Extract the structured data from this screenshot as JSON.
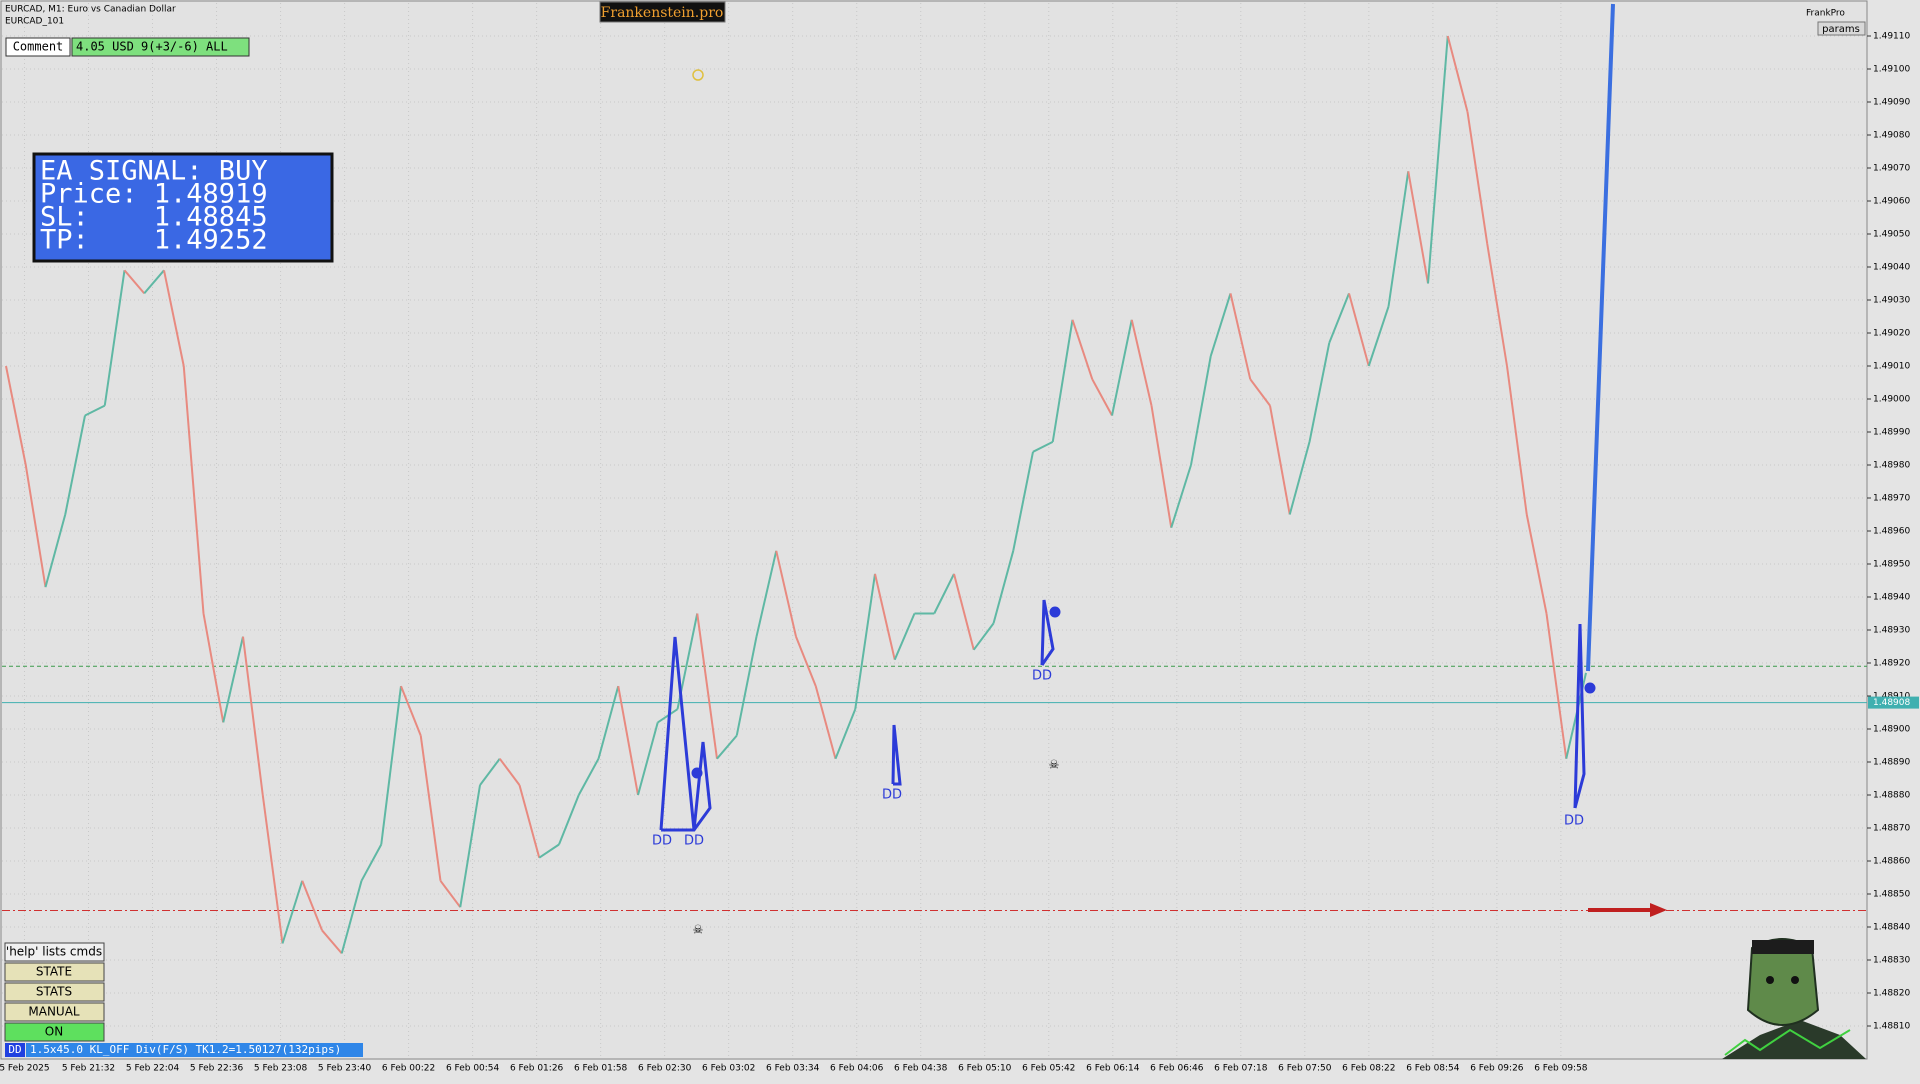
{
  "header": {
    "symbol": "EURCAD, M1:  Euro vs Canadian Dollar",
    "template": "EURCAD_101",
    "brand": "Frankenstein.pro",
    "account": "FrankPro",
    "params": "params"
  },
  "comment": {
    "label": "Comment",
    "text": "4.05 USD 9(+3/-6) ALL"
  },
  "signal_box": {
    "lines": [
      "EA SIGNAL: BUY",
      "Price: 1.48919",
      "SL:    1.48845",
      "TP:    1.49252"
    ]
  },
  "buttons": [
    "'help' lists cmds",
    "STATE",
    "STATS",
    "MANUAL",
    "ON"
  ],
  "status_bar": {
    "tag": "DD",
    "text": "1.5x45.0 KL_OFF Div(F/S) TK1.2=1.50127(132pips)"
  },
  "dd_labels": [
    "DD",
    "DD",
    "DD",
    "DD",
    "DD"
  ],
  "chart": {
    "type": "line",
    "categories": [
      "5 Feb 2025",
      "5 Feb 21:32",
      "5 Feb 22:04",
      "5 Feb 22:36",
      "5 Feb 23:08",
      "5 Feb 23:40",
      "6 Feb 00:22",
      "6 Feb 00:54",
      "6 Feb 01:26",
      "6 Feb 01:58",
      "6 Feb 02:30",
      "6 Feb 03:02",
      "6 Feb 03:34",
      "6 Feb 04:06",
      "6 Feb 04:38",
      "6 Feb 05:10",
      "6 Feb 05:42",
      "6 Feb 06:14",
      "6 Feb 06:46",
      "6 Feb 07:18",
      "6 Feb 07:50",
      "6 Feb 08:22",
      "6 Feb 08:54",
      "6 Feb 09:26",
      "6 Feb 09:58"
    ],
    "price": {
      "up_color": "#5fb8a4",
      "down_color": "#e88a80",
      "values": [
        1.4901,
        1.4898,
        1.48943,
        1.48965,
        1.48995,
        1.48998,
        1.49039,
        1.49032,
        1.49039,
        1.4901,
        1.48935,
        1.48902,
        1.48928,
        1.4888,
        1.48835,
        1.48854,
        1.48839,
        1.48832,
        1.48854,
        1.48865,
        1.48913,
        1.48898,
        1.48854,
        1.48846,
        1.48883,
        1.48891,
        1.48883,
        1.48861,
        1.48865,
        1.4888,
        1.48891,
        1.48913,
        1.4888,
        1.48902,
        1.48906,
        1.48935,
        1.48891,
        1.48898,
        1.48928,
        1.48954,
        1.48928,
        1.48913,
        1.48891,
        1.48906,
        1.48947,
        1.48921,
        1.48935,
        1.48935,
        1.48947,
        1.48924,
        1.48932,
        1.48954,
        1.48984,
        1.48987,
        1.49024,
        1.49006,
        1.48995,
        1.49024,
        1.48998,
        1.48961,
        1.4898,
        1.49013,
        1.49032,
        1.49006,
        1.48998,
        1.48965,
        1.48987,
        1.49017,
        1.49032,
        1.4901,
        1.49028,
        1.49069,
        1.49035,
        1.4911,
        1.49087,
        1.49047,
        1.4901,
        1.48965,
        1.48935,
        1.48891,
        1.48917
      ]
    },
    "levels": {
      "entry": 1.48919,
      "entry_color": "#3a9a4a",
      "sl": 1.48845,
      "sl_color": "#d03030",
      "current": 1.48908,
      "current_color": "#40b0b0"
    },
    "ylim": [
      1.488,
      1.4912
    ],
    "yticks": [
      {
        "value": 1.4881,
        "label": "1.48810"
      },
      {
        "value": 1.4882,
        "label": "1.48820"
      },
      {
        "value": 1.4883,
        "label": "1.48830"
      },
      {
        "value": 1.4884,
        "label": "1.48840"
      },
      {
        "value": 1.4885,
        "label": "1.48850"
      },
      {
        "value": 1.4886,
        "label": "1.48860"
      },
      {
        "value": 1.4887,
        "label": "1.48870"
      },
      {
        "value": 1.4888,
        "label": "1.48880"
      },
      {
        "value": 1.4889,
        "label": "1.48890"
      },
      {
        "value": 1.489,
        "label": "1.48900"
      },
      {
        "value": 1.4891,
        "label": "1.48910"
      },
      {
        "value": 1.4892,
        "label": "1.48920"
      },
      {
        "value": 1.4893,
        "label": "1.48930"
      },
      {
        "value": 1.4894,
        "label": "1.48940"
      },
      {
        "value": 1.4895,
        "label": "1.48950"
      },
      {
        "value": 1.4896,
        "label": "1.48960"
      },
      {
        "value": 1.4897,
        "label": "1.48970"
      },
      {
        "value": 1.4898,
        "label": "1.48980"
      },
      {
        "value": 1.4899,
        "label": "1.48990"
      },
      {
        "value": 1.49,
        "label": "1.49000"
      },
      {
        "value": 1.4901,
        "label": "1.49010"
      },
      {
        "value": 1.4902,
        "label": "1.49020"
      },
      {
        "value": 1.4903,
        "label": "1.49030"
      },
      {
        "value": 1.4904,
        "label": "1.49040"
      },
      {
        "value": 1.4905,
        "label": "1.49050"
      },
      {
        "value": 1.4906,
        "label": "1.49060"
      },
      {
        "value": 1.4907,
        "label": "1.49070"
      },
      {
        "value": 1.4908,
        "label": "1.49080"
      },
      {
        "value": 1.4909,
        "label": "1.49090"
      },
      {
        "value": 1.491,
        "label": "1.49100"
      },
      {
        "value": 1.4911,
        "label": "1.49110"
      }
    ],
    "grid": true
  }
}
